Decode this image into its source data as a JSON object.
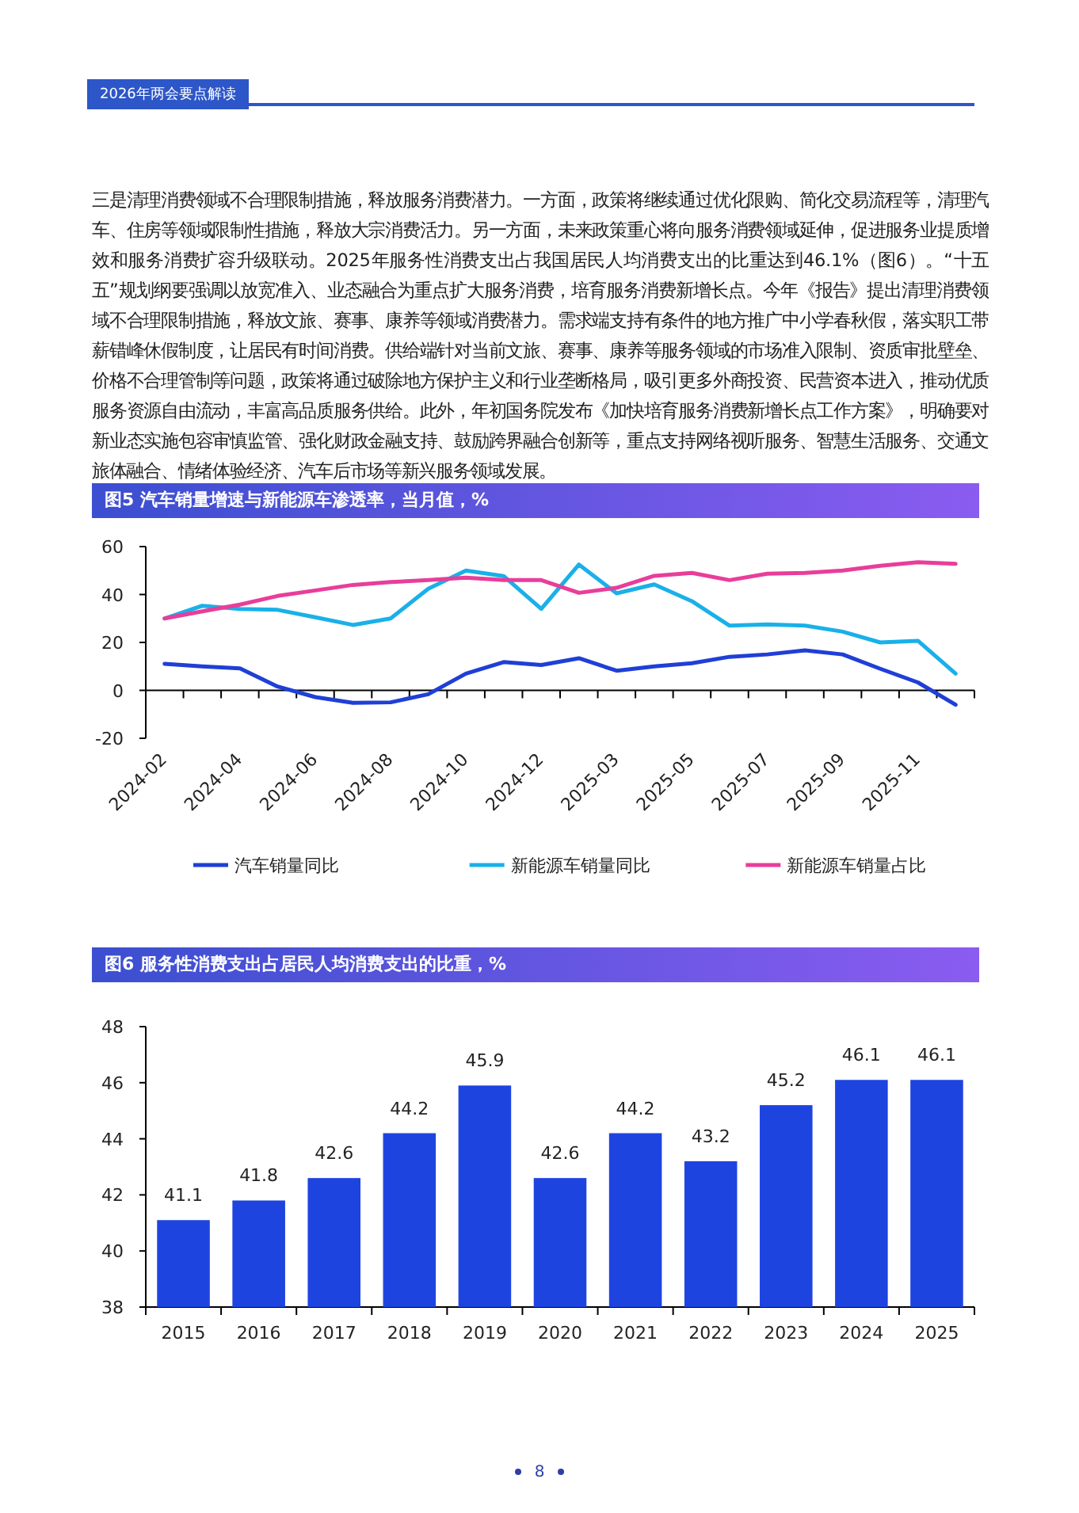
{
  "chart_data": [
    {
      "type": "line",
      "title": "图5 汽车销量增速与新能源车渗透率，当月值，%",
      "annotations": [
        "2026年两会要点解读",
        "三是清理消费领域不合理限制措施，释放服务消费潜力。一方面，政策将继续通过优化限购、简化交易流程等，清理汽车、住房等领域限制性措施，释放大宗消费活力。另一方面，未来政策重心将向服务消费领域延伸，促进服务业提质增效和服务消费扩容升级联动。2025年服务性消费支出占我国居民人均消费支出的比重达到46.1%（图6）。“十五五”规划纲要强调以放宽准入、业态融合为重点扩大服务消费，培育服务消费新增长点。今年《报告》提出清理消费领域不合理限制措施，释放文旅、赛事、康养等领域消费潜力。需求端支持有条件的地方推广中小学春秋假，落实职工带薪错峰休假制度，让居民有时间消费。供给端针对当前文旅、赛事、康养等服务领域的市场准入限制、资质审批壁垒、价格不合理管制等问题，政策将通过破除地方保护主义和行业垄断格局，吸引更多外商投资、民营资本进入，推动优质服务资源自由流动，丰富高品质服务供给。此外，年初国务院发布《加快培育服务消费新增长点工作方案》，明确要对新业态实施包容审慎监管、强化财政金融支持、鼓励跨界融合创新等，重点支持网络视听服务、智慧生活服务、交通文旅体融合、情绪体验经济、汽车后市场等新兴服务领域发展。"
      ],
      "categories": [
        "2024-02",
        null,
        "2024-04",
        null,
        "2024-06",
        null,
        "2024-08",
        null,
        "2024-10",
        null,
        "2024-12",
        null,
        "2025-03",
        null,
        "2025-05",
        null,
        "2025-07",
        null,
        "2025-09",
        null,
        "2025-11",
        null
      ],
      "series": [
        {
          "name": "汽车销量同比",
          "color": "#1f3fd6",
          "values": [
            11.1,
            10,
            9.2,
            1.6,
            -2.8,
            -5.2,
            -5,
            -1.6,
            7,
            11.8,
            10.6,
            13.4,
            8.2,
            10,
            11.3,
            14,
            15,
            16.7,
            15,
            9,
            3.3,
            -6
          ]
        },
        {
          "name": "新能源车销量同比",
          "color": "#1ab0e8",
          "values": [
            30,
            35.3,
            34,
            33.6,
            30.5,
            27.3,
            30,
            42.4,
            50,
            47.7,
            34,
            52.5,
            40.5,
            44.2,
            37.2,
            27,
            27.5,
            27,
            24.5,
            20,
            20.7,
            7
          ]
        },
        {
          "name": "新能源车销量占比",
          "color": "#e83e9a",
          "values": [
            30,
            33,
            35.8,
            39.4,
            41.7,
            44,
            45.2,
            46,
            47,
            46,
            46,
            40.7,
            42.8,
            47.8,
            49,
            46,
            48.7,
            49,
            50,
            52,
            53.5,
            52.8
          ]
        }
      ],
      "ylim": [
        -20,
        60
      ],
      "yticks": [
        -20,
        0,
        20,
        40,
        60
      ],
      "legend": "bottom"
    },
    {
      "type": "bar",
      "title": "图6 服务性消费支出占居民人均消费支出的比重，%",
      "annotations": [
        "8"
      ],
      "categories": [
        "2015",
        "2016",
        "2017",
        "2018",
        "2019",
        "2020",
        "2021",
        "2022",
        "2023",
        "2024",
        "2025"
      ],
      "values": [
        41.1,
        41.8,
        42.6,
        44.2,
        45.9,
        42.6,
        44.2,
        43.2,
        45.2,
        46.1,
        46.1
      ],
      "color": "#1e44e0",
      "ylim": [
        38,
        48
      ],
      "yticks": [
        38,
        40,
        42,
        44,
        46,
        48
      ],
      "data_labels": true
    }
  ]
}
